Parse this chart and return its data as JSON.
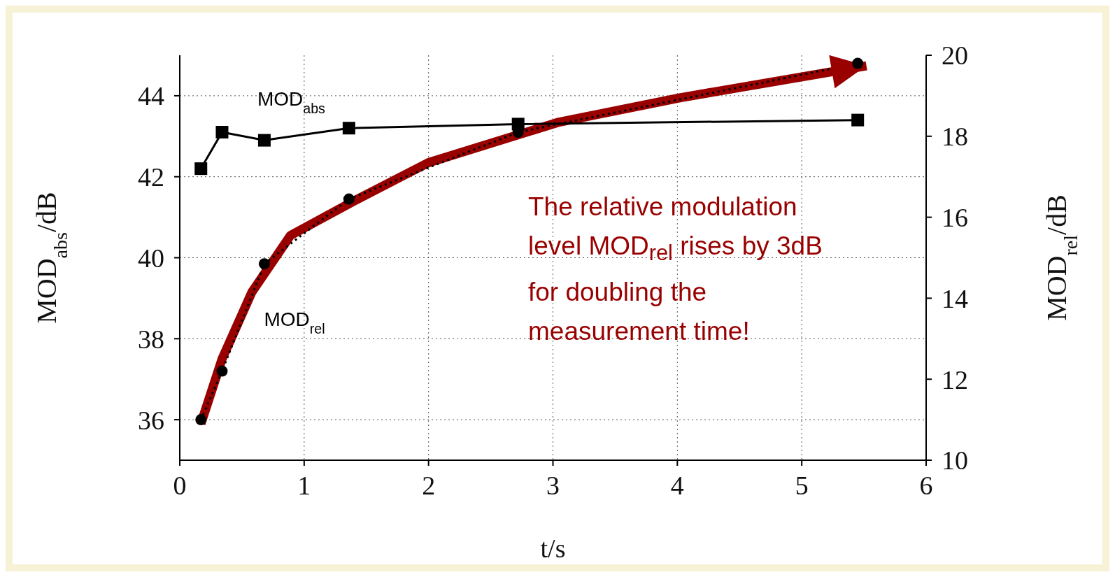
{
  "chart_data": {
    "type": "line",
    "xlabel": "t/s",
    "ylabel": "MOD$_{abs}$/dB",
    "y2label": "MOD$_{rel}$/dB",
    "xlim": [
      0,
      6
    ],
    "xticks": [
      0,
      1,
      2,
      3,
      4,
      5,
      6
    ],
    "ylim": [
      35,
      45
    ],
    "yticks": [
      36,
      38,
      40,
      42,
      44
    ],
    "y2lim": [
      10,
      20
    ],
    "y2ticks": [
      10,
      12,
      14,
      16,
      18,
      20
    ],
    "grid": true,
    "annotations": [
      "The relative modulation level MOD$_{rel}$ rises by 3dB for doubling the measurement time!"
    ],
    "series": [
      {
        "name": "MOD$_{abs}$",
        "color": "#000000",
        "marker": "square",
        "line_style": "solid",
        "x": [
          0.17,
          0.34,
          0.68,
          1.36,
          2.72,
          5.45
        ],
        "values": [
          42.2,
          43.1,
          42.9,
          43.2,
          43.3,
          43.4
        ]
      },
      {
        "name": "MOD$_{rel}$",
        "color": "#000000",
        "marker": "circle",
        "line_style": "dotted",
        "axis": "y2",
        "x": [
          0.17,
          0.34,
          0.68,
          1.36,
          2.72,
          5.45
        ],
        "values": [
          11.0,
          12.2,
          14.85,
          16.45,
          18.1,
          19.8
        ]
      },
      {
        "type": "line",
        "color": "#990000",
        "marker": "none",
        "line_style": "solid",
        "axis": "y2",
        "x": [
          0.17,
          0.34,
          0.58,
          0.89,
          1.4,
          2.0,
          3.05,
          4.02,
          5.52
        ],
        "values": [
          10.9,
          12.5,
          14.15,
          15.55,
          16.4,
          17.35,
          18.35,
          18.95,
          19.74
        ]
      }
    ]
  }
}
